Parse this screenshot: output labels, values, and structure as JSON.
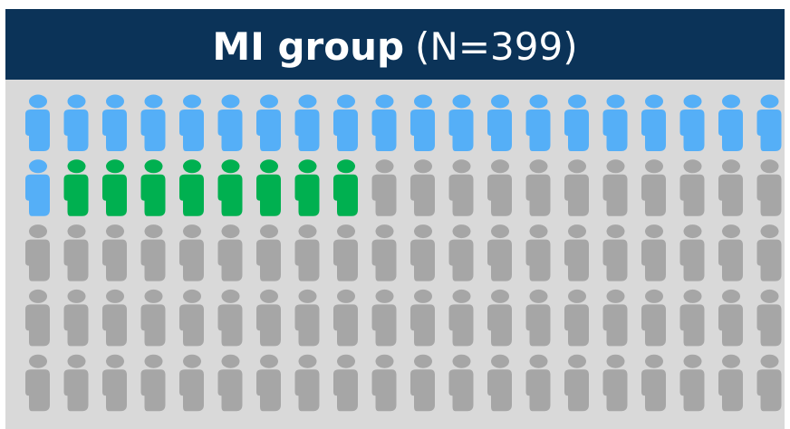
{
  "chart_data": {
    "type": "pictogram",
    "title": "MI group",
    "subtitle": "(N=399)",
    "series": [
      {
        "color": "#55aff7",
        "value": 21
      },
      {
        "color": "#00b050",
        "value": 8
      },
      {
        "color": "#a6a6a6",
        "value": 71
      }
    ]
  }
}
